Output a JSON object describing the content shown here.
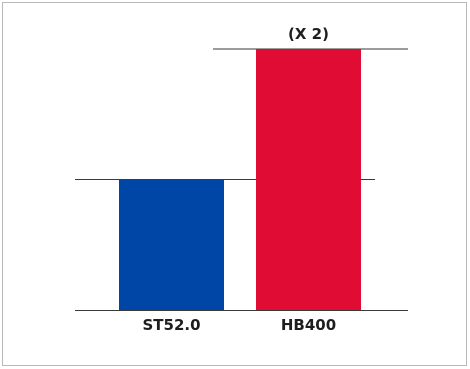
{
  "chart_data": {
    "type": "bar",
    "title": "",
    "xlabel": "",
    "ylabel": "",
    "categories": [
      "ST52.0",
      "HB400"
    ],
    "values": [
      1,
      2
    ],
    "colors": [
      "#0046a6",
      "#e00c33"
    ],
    "ylim": [
      0,
      2
    ],
    "annotations": [
      {
        "category": "HB400",
        "text": "(X 2)"
      }
    ],
    "grid": "partial horizontal reference lines at bar tops and baseline",
    "legend": "none"
  }
}
